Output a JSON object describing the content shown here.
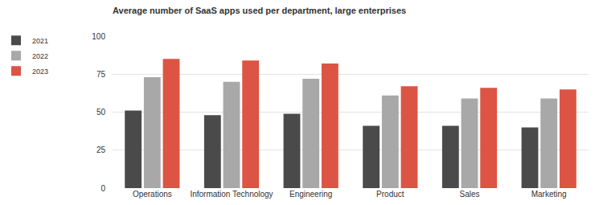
{
  "chart_data": {
    "type": "bar",
    "title": "Average number of SaaS apps used per department, large enterprises",
    "categories": [
      "Operations",
      "Information Technology",
      "Engineering",
      "Product",
      "Sales",
      "Marketing"
    ],
    "series": [
      {
        "name": "2021",
        "color": "#4a4a4a",
        "values": [
          51,
          48,
          49,
          41,
          41,
          40
        ]
      },
      {
        "name": "2022",
        "color": "#a8a8a8",
        "values": [
          73,
          70,
          72,
          61,
          59,
          59
        ]
      },
      {
        "name": "2023",
        "color": "#dc5443",
        "values": [
          85,
          84,
          82,
          67,
          66,
          65
        ]
      }
    ],
    "ylim": [
      0,
      100
    ],
    "yticks": [
      0,
      25,
      50,
      75,
      100
    ],
    "grid": true,
    "legend": "top-left"
  }
}
